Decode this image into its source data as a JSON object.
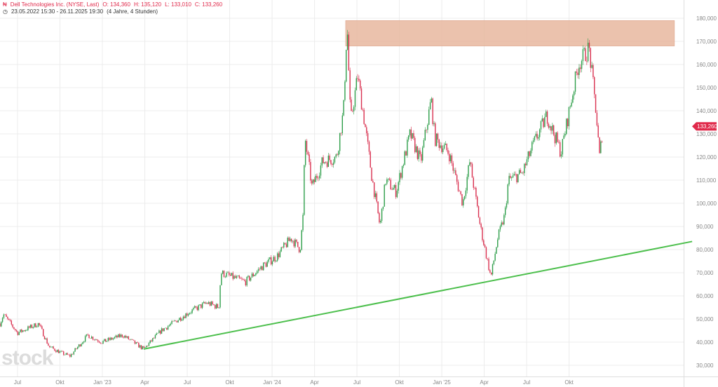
{
  "header": {
    "icon": "chart-candles-icon",
    "title": "Dell Technologies Inc. (NYSE, Last)",
    "open": "O: 134,360",
    "high": "H: 135,120",
    "low": "L: 133,010",
    "close": "C: 133,260",
    "range_icon": "clock-icon",
    "range": "23.05.2022 15:30 - 26.11.2025 19:30",
    "span": "(4 Jahre, 4 Stunden)"
  },
  "watermark": "stock",
  "colors": {
    "up": "#2e9e4a",
    "down": "#d9304f",
    "zone": "#e8b79f",
    "trend": "#4cbf4c",
    "badge": "#e0294a"
  },
  "chart_data": {
    "type": "candlestick",
    "x_unit": "months since Jul 2022",
    "ylim": [
      27000,
      183000
    ],
    "yticks": [
      30000,
      40000,
      50000,
      60000,
      70000,
      80000,
      90000,
      100000,
      110000,
      120000,
      130000,
      140000,
      150000,
      160000,
      170000,
      180000
    ],
    "ytick_labels": [
      "30,000",
      "40,000",
      "50,000",
      "60,000",
      "70,000",
      "80,000",
      "90,000",
      "100,000",
      "110,000",
      "120,000",
      "130,000",
      "140,000",
      "150,000",
      "160,000",
      "170,000",
      "180,000"
    ],
    "xticks": [
      {
        "m": 0,
        "label": "Jul"
      },
      {
        "m": 3,
        "label": "Okt"
      },
      {
        "m": 6,
        "label": "Jan '23"
      },
      {
        "m": 9,
        "label": "Apr"
      },
      {
        "m": 12,
        "label": "Jul"
      },
      {
        "m": 15,
        "label": "Okt"
      },
      {
        "m": 18,
        "label": "Jan '24"
      },
      {
        "m": 21,
        "label": "Apr"
      },
      {
        "m": 24,
        "label": "Jul"
      },
      {
        "m": 27,
        "label": "Okt"
      },
      {
        "m": 30,
        "label": "Jan '25"
      },
      {
        "m": 33,
        "label": "Apr"
      },
      {
        "m": 36,
        "label": "Jul"
      },
      {
        "m": 39,
        "label": "Okt"
      }
    ],
    "price_path": [
      [
        -1.24,
        48
      ],
      [
        -0.99,
        52
      ],
      [
        0,
        44
      ],
      [
        1.49,
        48
      ],
      [
        2.23,
        38
      ],
      [
        3.22,
        35
      ],
      [
        3.72,
        34
      ],
      [
        4.96,
        43
      ],
      [
        5.95,
        40
      ],
      [
        7.44,
        43
      ],
      [
        8.92,
        37
      ],
      [
        10.16,
        45
      ],
      [
        12.15,
        53
      ],
      [
        13.39,
        57
      ],
      [
        14.23,
        55
      ],
      [
        14.38,
        70
      ],
      [
        16.11,
        66
      ],
      [
        17.35,
        73
      ],
      [
        18.34,
        77
      ],
      [
        19.34,
        85
      ],
      [
        19.98,
        80
      ],
      [
        20.18,
        94
      ],
      [
        20.33,
        128
      ],
      [
        20.82,
        107
      ],
      [
        21.57,
        118
      ],
      [
        22.56,
        120
      ],
      [
        23.05,
        140
      ],
      [
        23.3,
        178
      ],
      [
        23.55,
        135
      ],
      [
        24.05,
        155
      ],
      [
        24.54,
        135
      ],
      [
        25.04,
        112
      ],
      [
        25.63,
        90
      ],
      [
        26.03,
        110
      ],
      [
        26.77,
        105
      ],
      [
        27.76,
        130
      ],
      [
        28.51,
        118
      ],
      [
        29.25,
        145
      ],
      [
        29.5,
        128
      ],
      [
        30.49,
        122
      ],
      [
        31.48,
        100
      ],
      [
        31.98,
        118
      ],
      [
        32.72,
        90
      ],
      [
        33.47,
        68
      ],
      [
        33.96,
        85
      ],
      [
        34.46,
        95
      ],
      [
        34.71,
        110
      ],
      [
        35.7,
        113
      ],
      [
        36.44,
        125
      ],
      [
        37.43,
        138
      ],
      [
        38.43,
        122
      ],
      [
        39.17,
        145
      ],
      [
        39.66,
        160
      ],
      [
        40.41,
        167
      ],
      [
        40.9,
        140
      ],
      [
        41.15,
        120
      ],
      [
        41.4,
        133.26
      ]
    ],
    "price_unit": "thousands",
    "last_price": "133,260",
    "resistance_zone": {
      "from_m": 23.2,
      "to_m": 46.45,
      "low": 168000,
      "high": 179000
    },
    "trendline": {
      "from": [
        8.92,
        37000
      ],
      "to": [
        47.7,
        83500
      ]
    }
  }
}
